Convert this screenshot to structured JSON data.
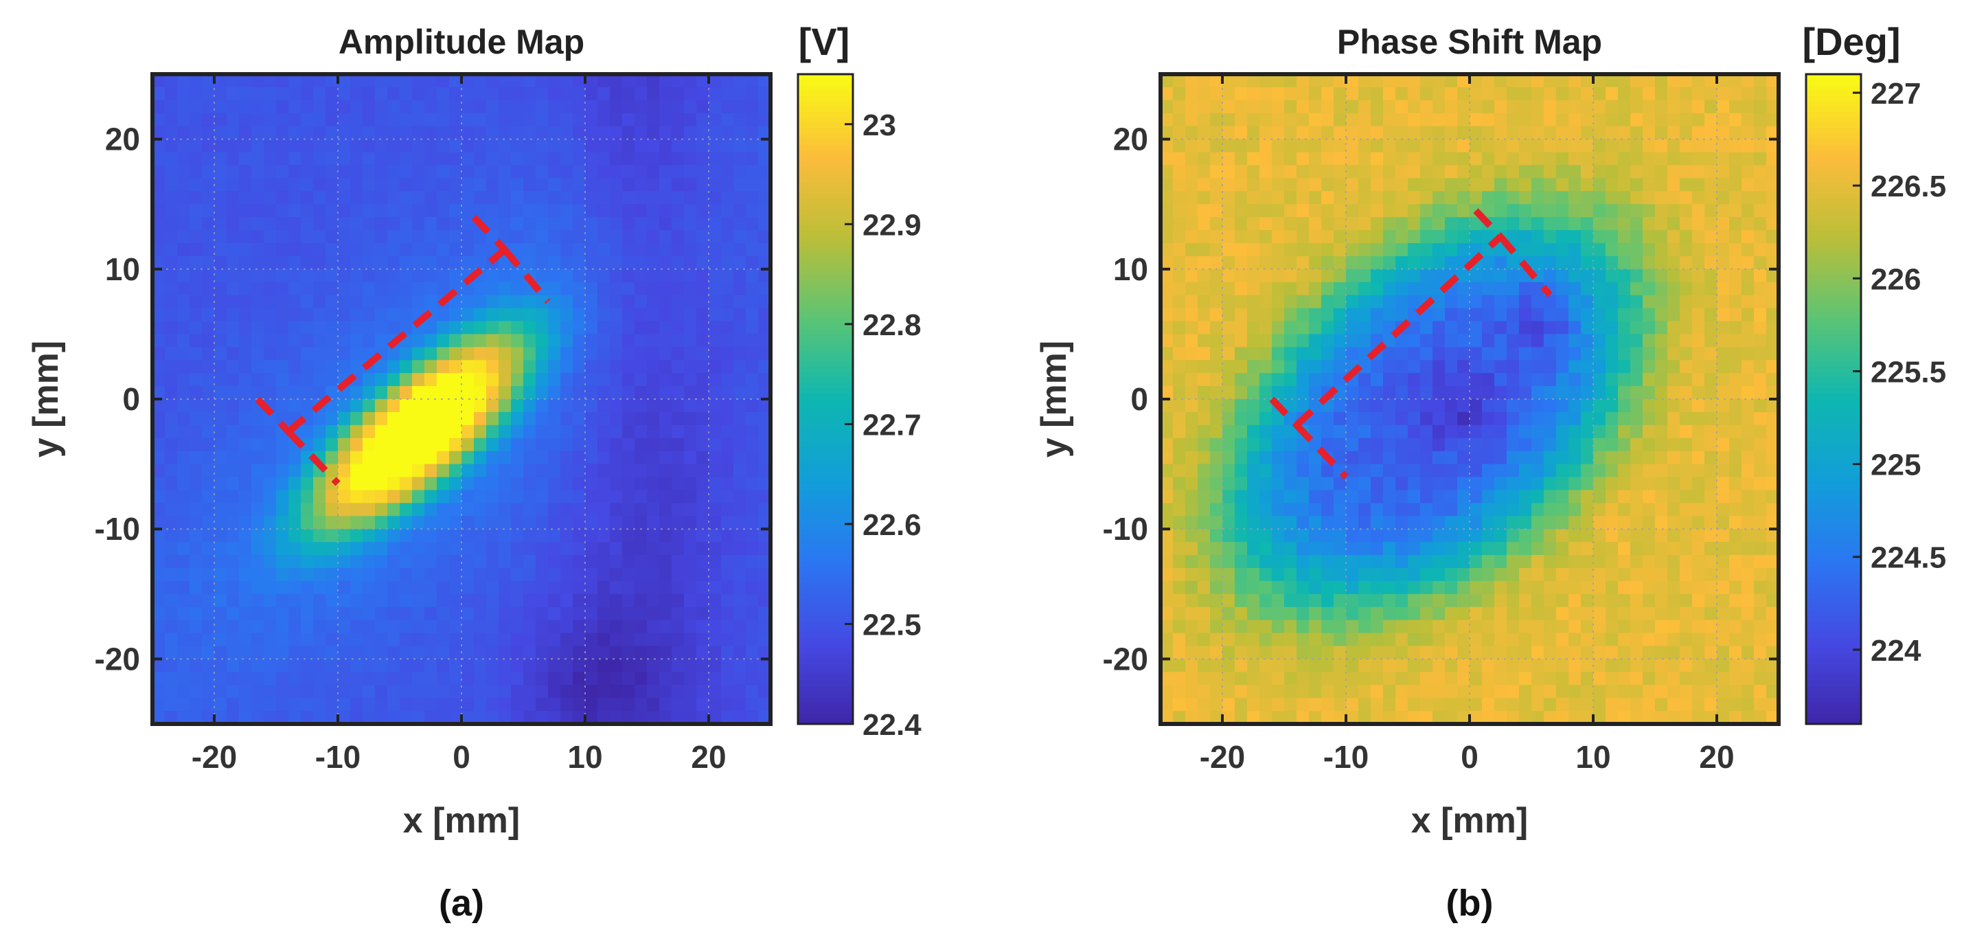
{
  "figure": {
    "panels": [
      {
        "caption": "(a)"
      },
      {
        "caption": "(b)"
      }
    ]
  },
  "chart_data": [
    {
      "type": "heatmap",
      "title": "Amplitude Map",
      "colorbar_label": "[V]",
      "xlabel": "x [mm]",
      "ylabel": "y [mm]",
      "xlim": [
        -25,
        25
      ],
      "ylim": [
        -25,
        25
      ],
      "xticks": [
        -20,
        -10,
        0,
        10,
        20
      ],
      "yticks": [
        -20,
        -10,
        0,
        10,
        20
      ],
      "xtick_labels": [
        "-20",
        "-10",
        "0",
        "10",
        "20"
      ],
      "ytick_labels": [
        "-20",
        "-10",
        "0",
        "10",
        "20"
      ],
      "grid": true,
      "colormap": "parula",
      "clim": [
        22.4,
        23.05
      ],
      "colorbar_ticks": [
        22.4,
        22.5,
        22.6,
        22.7,
        22.8,
        22.9,
        23
      ],
      "colorbar_tick_labels": [
        "22.4",
        "22.5",
        "22.6",
        "22.7",
        "22.8",
        "22.9",
        "23"
      ],
      "background_value": 22.5,
      "feature": {
        "center": [
          -3.5,
          -2.5
        ],
        "angle_deg": 40,
        "semi_major": 12.5,
        "semi_minor": 4.5,
        "peak_value": 23.0
      },
      "annotation": {
        "style": "red dashed",
        "color": "#e8202a",
        "corner_points": [
          [
            -16.5,
            0
          ],
          [
            -14,
            -2.5
          ],
          [
            -10,
            -6.5
          ],
          [
            1,
            14
          ],
          [
            3.5,
            11.5
          ],
          [
            7,
            7.5
          ]
        ]
      }
    },
    {
      "type": "heatmap",
      "title": "Phase Shift Map",
      "colorbar_label": "[Deg]",
      "xlabel": "x [mm]",
      "ylabel": "y [mm]",
      "xlim": [
        -25,
        25
      ],
      "ylim": [
        -25,
        25
      ],
      "xticks": [
        -20,
        -10,
        0,
        10,
        20
      ],
      "yticks": [
        -20,
        -10,
        0,
        10,
        20
      ],
      "xtick_labels": [
        "-20",
        "-10",
        "0",
        "10",
        "20"
      ],
      "ytick_labels": [
        "-20",
        "-10",
        "0",
        "10",
        "20"
      ],
      "grid": true,
      "colormap": "parula",
      "clim": [
        223.6,
        227.1
      ],
      "colorbar_ticks": [
        224,
        224.5,
        225,
        225.5,
        226,
        226.5,
        227
      ],
      "colorbar_tick_labels": [
        "224",
        "224.5",
        "225",
        "225.5",
        "226",
        "226.5",
        "227"
      ],
      "background_value": 226.5,
      "feature": {
        "center": [
          -3,
          -1
        ],
        "angle_deg": 40,
        "semi_major": 18,
        "semi_minor": 11,
        "min_value": 223.7
      },
      "annotation": {
        "style": "red dashed",
        "color": "#e8202a",
        "corner_points": [
          [
            -16,
            0
          ],
          [
            -14,
            -2
          ],
          [
            -10,
            -6
          ],
          [
            0.5,
            14.5
          ],
          [
            2.5,
            12.5
          ],
          [
            6.5,
            8
          ]
        ]
      }
    }
  ]
}
